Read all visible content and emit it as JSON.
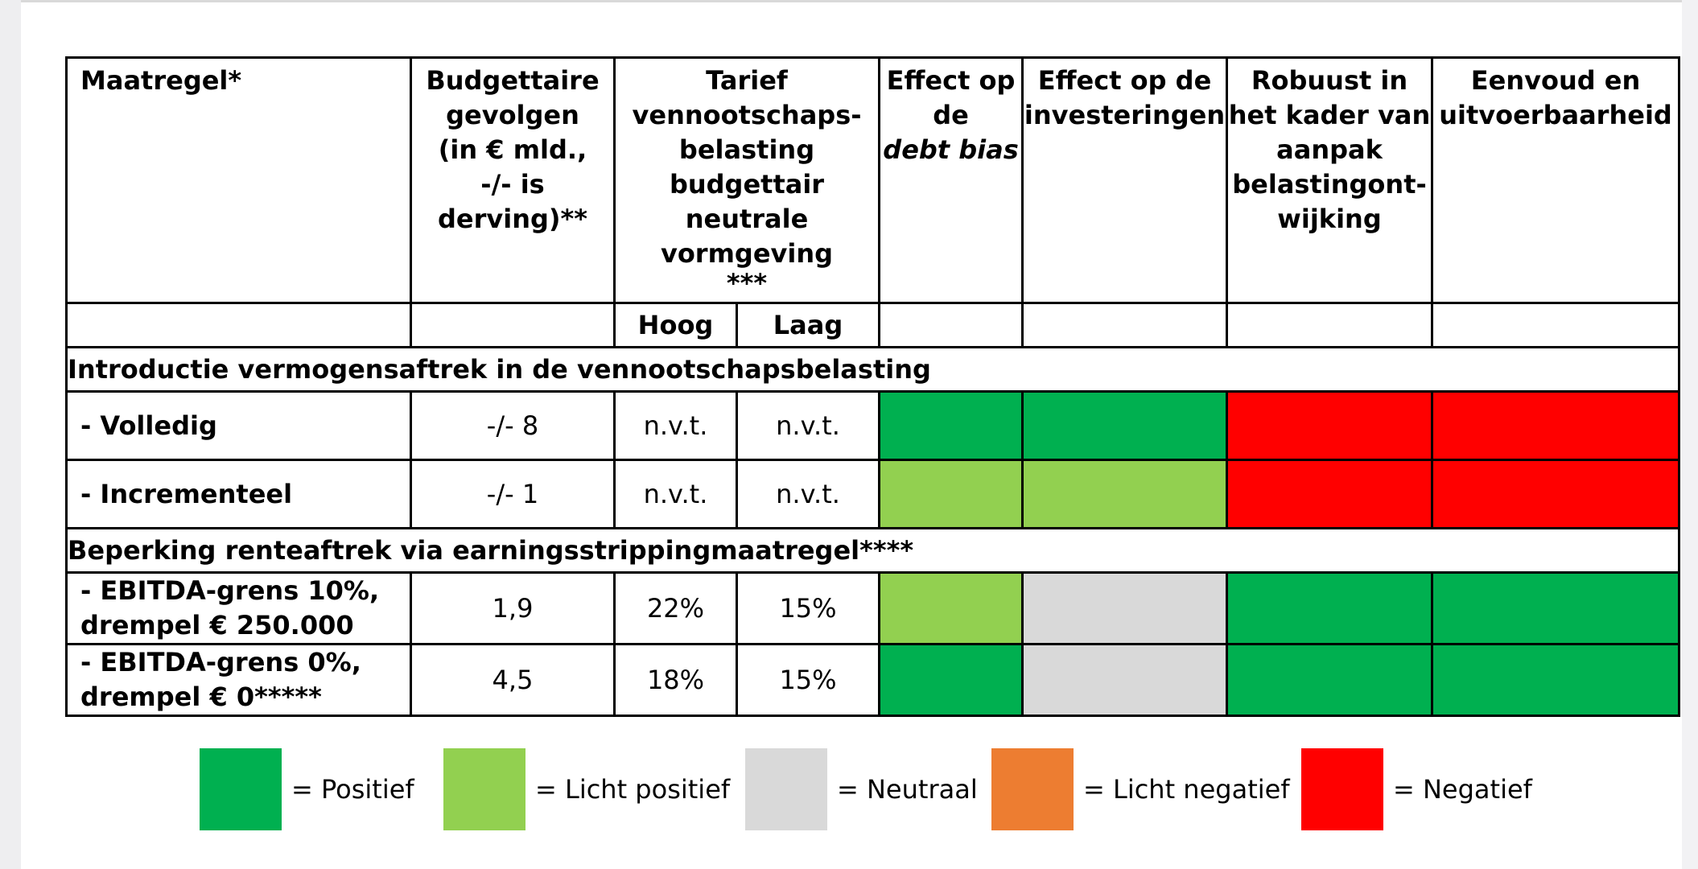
{
  "table": {
    "header": {
      "maatregel": "Maatregel*",
      "budget": [
        "Budgettaire",
        "gevolgen",
        "(in € mld.,",
        "-/- is",
        "derving)**"
      ],
      "tarief": [
        "Tarief",
        "vennootschaps-",
        "belasting",
        "budgettair",
        "neutrale",
        "vormgeving",
        "***"
      ],
      "debt_line1": "Effect op",
      "debt_line2": "de",
      "debt_line3": "debt bias",
      "investeringen": [
        "Effect op de",
        "investeringen"
      ],
      "robuust": [
        "Robuust in",
        "het kader van",
        "aanpak",
        "belastingont-",
        "wijking"
      ],
      "eenvoud": [
        "Eenvoud en",
        "uitvoerbaarheid"
      ],
      "hoog": "Hoog",
      "laag": "Laag"
    },
    "section1": "Introductie vermogensaftrek in de vennootschapsbelasting",
    "section2": "Beperking renteaftrek via earningsstrippingmaatregel****",
    "rows": [
      {
        "name_lines": [
          "- Volledig"
        ],
        "budget": "-/- 8",
        "hoog": "n.v.t.",
        "laag": "n.v.t.",
        "ratings": [
          "positief",
          "positief",
          "negatief",
          "negatief"
        ]
      },
      {
        "name_lines": [
          "- Incrementeel"
        ],
        "budget": "-/- 1",
        "hoog": "n.v.t.",
        "laag": "n.v.t.",
        "ratings": [
          "licht_positief",
          "licht_positief",
          "negatief",
          "negatief"
        ]
      },
      {
        "name_lines": [
          "- EBITDA-grens 10%,",
          "drempel € 250.000"
        ],
        "budget": "1,9",
        "hoog": "22%",
        "laag": "15%",
        "ratings": [
          "licht_positief",
          "neutraal",
          "positief",
          "positief"
        ]
      },
      {
        "name_lines": [
          "- EBITDA-grens 0%,",
          "drempel € 0*****"
        ],
        "budget": "4,5",
        "hoog": "18%",
        "laag": "15%",
        "ratings": [
          "positief",
          "neutraal",
          "positief",
          "positief"
        ]
      }
    ]
  },
  "colors": {
    "positief": "#00b050",
    "licht_positief": "#92d050",
    "neutraal": "#d9d9d9",
    "licht_negatief": "#ed7d31",
    "negatief": "#ff0000"
  },
  "legend": [
    {
      "key": "positief",
      "label": "= Positief"
    },
    {
      "key": "licht_positief",
      "label": "= Licht positief"
    },
    {
      "key": "neutraal",
      "label": "= Neutraal"
    },
    {
      "key": "licht_negatief",
      "label": "= Licht negatief"
    },
    {
      "key": "negatief",
      "label": "= Negatief"
    }
  ]
}
